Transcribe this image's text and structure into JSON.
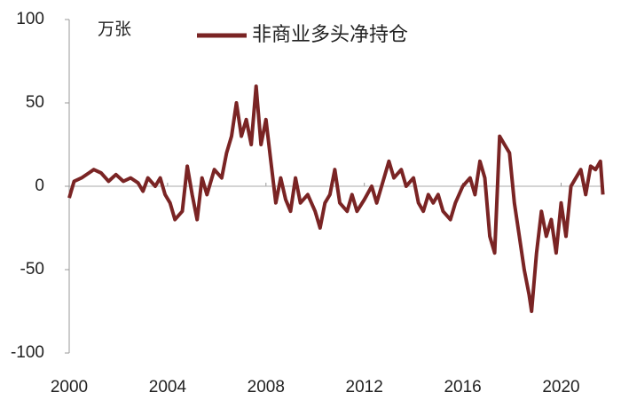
{
  "chart_data": {
    "type": "line",
    "y_unit": "万张",
    "xlim": [
      2000,
      2021.75
    ],
    "xticks": [
      2000,
      2004,
      2008,
      2012,
      2016,
      2020
    ],
    "ylim": [
      -100,
      100
    ],
    "yticks": [
      -100,
      -50,
      0,
      50,
      100
    ],
    "zero_line": true,
    "legend": "top",
    "x": [
      2000.0,
      2000.2,
      2000.5,
      2000.8,
      2001.0,
      2001.3,
      2001.6,
      2001.9,
      2002.2,
      2002.5,
      2002.8,
      2003.0,
      2003.2,
      2003.5,
      2003.7,
      2003.9,
      2004.1,
      2004.3,
      2004.6,
      2004.8,
      2005.0,
      2005.2,
      2005.4,
      2005.6,
      2005.9,
      2006.2,
      2006.4,
      2006.6,
      2006.8,
      2007.0,
      2007.2,
      2007.4,
      2007.6,
      2007.8,
      2008.0,
      2008.2,
      2008.4,
      2008.6,
      2008.8,
      2009.0,
      2009.2,
      2009.4,
      2009.7,
      2010.0,
      2010.2,
      2010.4,
      2010.6,
      2010.8,
      2011.0,
      2011.3,
      2011.5,
      2011.7,
      2012.0,
      2012.3,
      2012.5,
      2012.8,
      2013.0,
      2013.2,
      2013.5,
      2013.7,
      2014.0,
      2014.2,
      2014.4,
      2014.6,
      2014.8,
      2015.0,
      2015.2,
      2015.5,
      2015.7,
      2016.0,
      2016.3,
      2016.5,
      2016.7,
      2016.9,
      2017.1,
      2017.3,
      2017.5,
      2017.7,
      2017.9,
      2018.1,
      2018.3,
      2018.5,
      2018.7,
      2018.8,
      2019.0,
      2019.2,
      2019.4,
      2019.6,
      2019.8,
      2020.0,
      2020.2,
      2020.4,
      2020.6,
      2020.8,
      2021.0,
      2021.2,
      2021.4,
      2021.6,
      2021.7
    ],
    "series": [
      {
        "name": "非商业多头净持仓",
        "color": "#7a2424",
        "values": [
          -7,
          3,
          5,
          8,
          10,
          8,
          3,
          7,
          3,
          5,
          2,
          -3,
          5,
          0,
          5,
          -5,
          -10,
          -20,
          -15,
          12,
          -5,
          -20,
          5,
          -5,
          10,
          5,
          20,
          30,
          50,
          30,
          40,
          25,
          60,
          25,
          40,
          15,
          -10,
          5,
          -8,
          -15,
          5,
          -10,
          -5,
          -15,
          -25,
          -10,
          -5,
          10,
          -10,
          -15,
          -5,
          -15,
          -8,
          0,
          -10,
          5,
          15,
          5,
          10,
          0,
          5,
          -10,
          -15,
          -5,
          -10,
          -5,
          -15,
          -20,
          -10,
          0,
          5,
          -5,
          15,
          5,
          -30,
          -40,
          30,
          25,
          20,
          -10,
          -30,
          -50,
          -65,
          -75,
          -40,
          -15,
          -30,
          -20,
          -40,
          -10,
          -30,
          0,
          5,
          10,
          -5,
          12,
          10,
          15,
          -5
        ]
      }
    ]
  }
}
